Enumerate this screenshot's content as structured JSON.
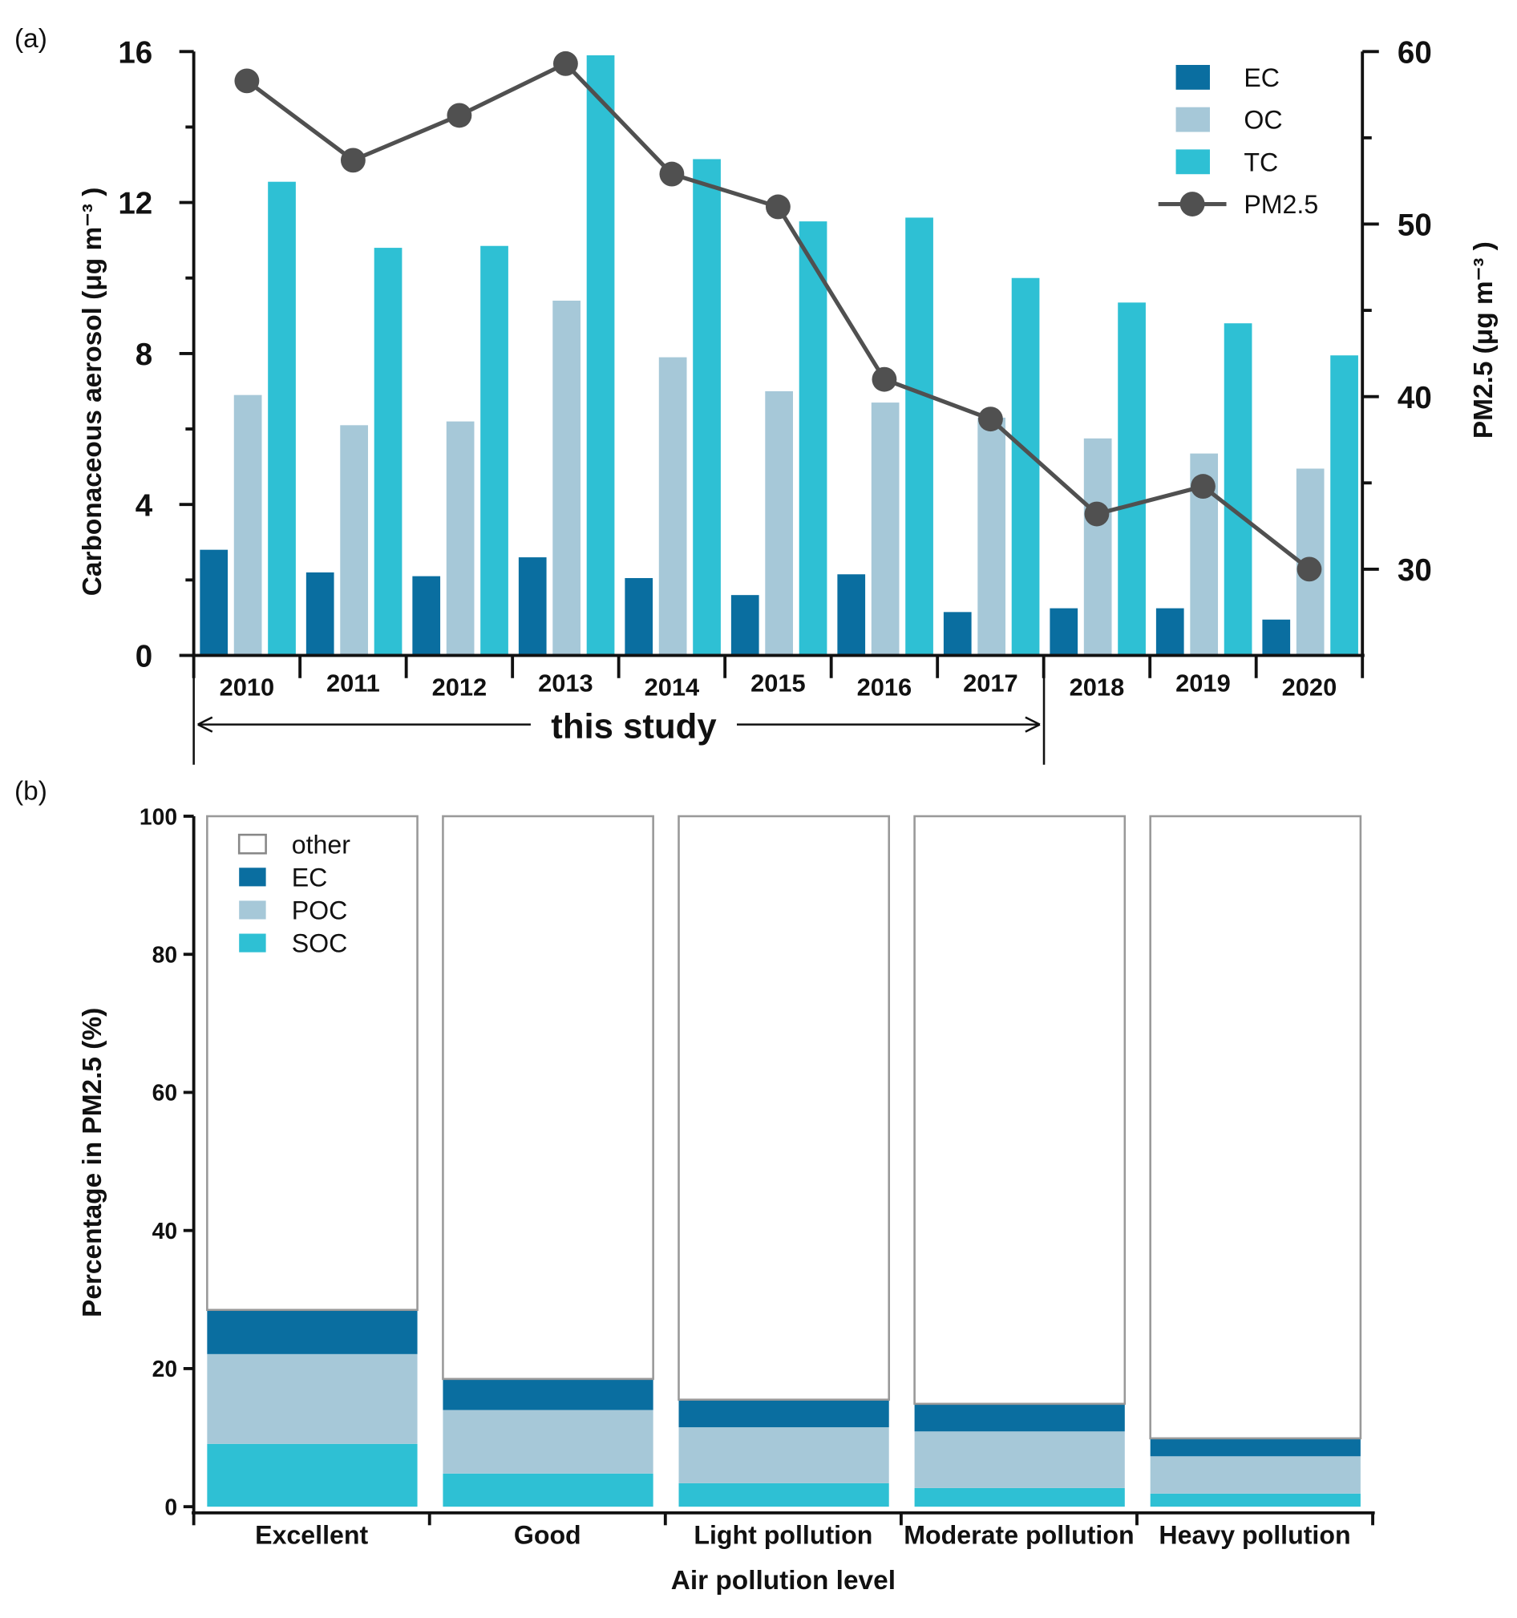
{
  "colors": {
    "EC": "#0a6ea0",
    "OC": "#a6c8d8",
    "TC": "#2ec0d4",
    "PM25": "#505050",
    "other": "#ffffff"
  },
  "chart_data": [
    {
      "panel_label": "(a)",
      "type": "bar+line",
      "categories": [
        "2010",
        "2011",
        "2012",
        "2013",
        "2014",
        "2015",
        "2016",
        "2017",
        "2018",
        "2019",
        "2020"
      ],
      "series": [
        {
          "name": "EC",
          "type": "bar",
          "axis": "left",
          "values": [
            2.8,
            2.2,
            2.1,
            2.6,
            2.05,
            1.6,
            2.15,
            1.15,
            1.25,
            1.25,
            0.95
          ]
        },
        {
          "name": "OC",
          "type": "bar",
          "axis": "left",
          "values": [
            6.9,
            6.1,
            6.2,
            9.4,
            7.9,
            7.0,
            6.7,
            6.3,
            5.75,
            5.35,
            4.95
          ]
        },
        {
          "name": "TC",
          "type": "bar",
          "axis": "left",
          "values": [
            12.55,
            10.8,
            10.85,
            15.9,
            13.15,
            11.5,
            11.6,
            10.0,
            9.35,
            8.8,
            7.95
          ]
        },
        {
          "name": "PM2.5",
          "type": "line",
          "axis": "right",
          "values": [
            58.3,
            53.7,
            56.3,
            59.3,
            52.9,
            51.0,
            41.0,
            38.7,
            33.2,
            34.8,
            30.0
          ]
        }
      ],
      "ylabel_left": "Carbonaceous aerosol (μg m⁻³ )",
      "ylabel_right": "PM2.5 (μg m⁻³ )",
      "ylim_left": [
        0,
        16
      ],
      "yticks_left": [
        0,
        4,
        8,
        12,
        16
      ],
      "ylim_right": [
        25,
        60
      ],
      "yticks_right": [
        30,
        40,
        50,
        60
      ],
      "legend_position": "top-right",
      "annotation": "this study",
      "annotation_range": [
        "2010",
        "2017"
      ],
      "grid": false
    },
    {
      "panel_label": "(b)",
      "type": "stacked-bar",
      "categories": [
        "Excellent",
        "Good",
        "Light pollution",
        "Moderate pollution",
        "Heavy pollution"
      ],
      "series": [
        {
          "name": "SOC",
          "values": [
            9.1,
            4.8,
            3.4,
            2.7,
            1.9
          ]
        },
        {
          "name": "POC",
          "values": [
            13.0,
            9.2,
            8.1,
            8.2,
            5.4
          ]
        },
        {
          "name": "EC",
          "values": [
            6.4,
            4.5,
            4.0,
            4.0,
            2.6
          ]
        },
        {
          "name": "other",
          "values": [
            71.5,
            81.5,
            84.5,
            85.1,
            90.1
          ]
        }
      ],
      "legend_order": [
        "other",
        "EC",
        "POC",
        "SOC"
      ],
      "xlabel": "Air pollution level",
      "ylabel": "Percentage in PM2.5 (%)",
      "ylim": [
        0,
        100
      ],
      "yticks": [
        0,
        20,
        40,
        60,
        80,
        100
      ],
      "legend_position": "top-left",
      "grid": false
    }
  ]
}
